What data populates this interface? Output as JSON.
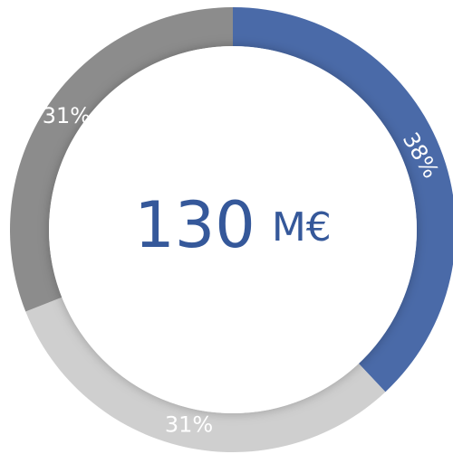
{
  "chart_data": {
    "type": "donut",
    "values": [
      38,
      31,
      31
    ],
    "value_labels": [
      "38%",
      "31%",
      "31%"
    ],
    "colors": [
      "#4a6aa8",
      "#cfcfcf",
      "#8c8c8c"
    ],
    "center_value": 130,
    "center_unit": "M€"
  }
}
